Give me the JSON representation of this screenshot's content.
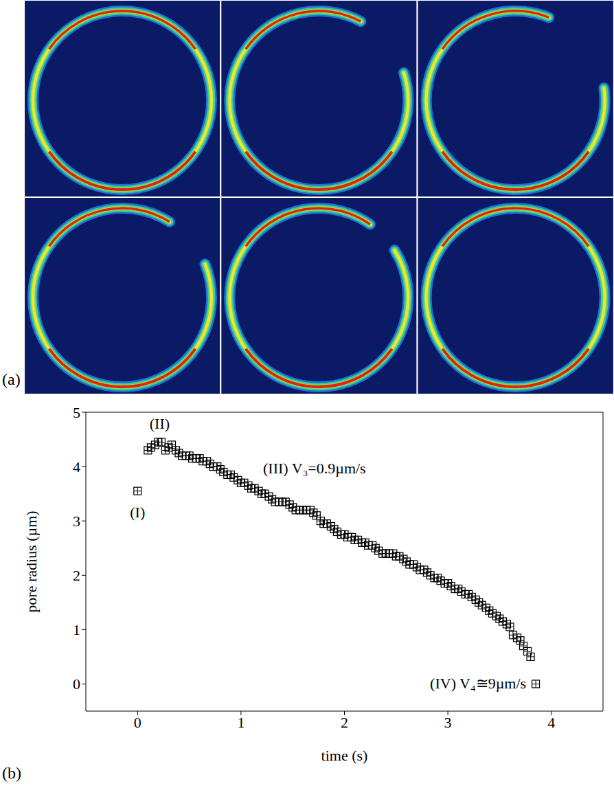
{
  "chart_data": {
    "type": "scatter",
    "xlabel": "time (s)",
    "ylabel": "pore radius (µm)",
    "x": [
      0,
      0.1,
      0.13,
      0.17,
      0.2,
      0.23,
      0.27,
      0.3,
      0.33,
      0.37,
      0.4,
      0.43,
      0.47,
      0.5,
      0.53,
      0.57,
      0.6,
      0.63,
      0.67,
      0.7,
      0.73,
      0.77,
      0.8,
      0.83,
      0.87,
      0.9,
      0.93,
      0.97,
      1.0,
      1.03,
      1.07,
      1.1,
      1.13,
      1.17,
      1.2,
      1.23,
      1.27,
      1.3,
      1.33,
      1.37,
      1.4,
      1.43,
      1.47,
      1.5,
      1.53,
      1.57,
      1.6,
      1.63,
      1.67,
      1.7,
      1.73,
      1.77,
      1.8,
      1.83,
      1.87,
      1.9,
      1.93,
      1.97,
      2.0,
      2.03,
      2.07,
      2.1,
      2.13,
      2.17,
      2.2,
      2.23,
      2.27,
      2.3,
      2.33,
      2.37,
      2.4,
      2.43,
      2.47,
      2.5,
      2.53,
      2.57,
      2.6,
      2.63,
      2.67,
      2.7,
      2.73,
      2.77,
      2.8,
      2.83,
      2.87,
      2.9,
      2.93,
      2.97,
      3.0,
      3.03,
      3.07,
      3.1,
      3.13,
      3.17,
      3.2,
      3.23,
      3.27,
      3.3,
      3.33,
      3.37,
      3.4,
      3.43,
      3.47,
      3.5,
      3.53,
      3.57,
      3.6,
      3.63,
      3.67,
      3.7,
      3.73,
      3.77,
      3.8,
      3.85
    ],
    "values": [
      3.55,
      4.3,
      4.35,
      4.4,
      4.45,
      4.45,
      4.3,
      4.35,
      4.4,
      4.3,
      4.25,
      4.2,
      4.2,
      4.2,
      4.15,
      4.15,
      4.15,
      4.1,
      4.1,
      4.05,
      4.0,
      4.0,
      3.95,
      3.9,
      3.85,
      3.85,
      3.8,
      3.75,
      3.7,
      3.7,
      3.65,
      3.6,
      3.6,
      3.55,
      3.5,
      3.5,
      3.45,
      3.4,
      3.35,
      3.35,
      3.35,
      3.35,
      3.3,
      3.25,
      3.2,
      3.2,
      3.2,
      3.2,
      3.2,
      3.15,
      3.1,
      3.0,
      2.95,
      2.95,
      2.9,
      2.85,
      2.8,
      2.75,
      2.75,
      2.7,
      2.7,
      2.65,
      2.65,
      2.6,
      2.6,
      2.55,
      2.55,
      2.5,
      2.45,
      2.4,
      2.4,
      2.4,
      2.4,
      2.35,
      2.35,
      2.3,
      2.25,
      2.2,
      2.2,
      2.15,
      2.1,
      2.1,
      2.05,
      2.0,
      1.95,
      1.95,
      1.9,
      1.85,
      1.85,
      1.8,
      1.75,
      1.75,
      1.7,
      1.65,
      1.65,
      1.6,
      1.55,
      1.5,
      1.45,
      1.4,
      1.35,
      1.3,
      1.25,
      1.2,
      1.15,
      1.1,
      1.05,
      0.9,
      0.85,
      0.8,
      0.7,
      0.6,
      0.5,
      0.0
    ],
    "xlim": [
      -0.5,
      4.5
    ],
    "ylim": [
      -0.5,
      5
    ],
    "xticks": [
      0,
      1,
      2,
      3,
      4
    ],
    "yticks": [
      0,
      1,
      2,
      3,
      4,
      5
    ],
    "marker": "square-cross",
    "color": "#000000",
    "grid": false,
    "annotations": [
      {
        "text": "(I)"
      },
      {
        "text": "(II)"
      },
      {
        "text": "(III) V₃=0.9µm/s"
      },
      {
        "text": "(IV) V₄≅9µm/s"
      }
    ]
  },
  "panel_labels": [
    "(a)",
    "(b)"
  ]
}
